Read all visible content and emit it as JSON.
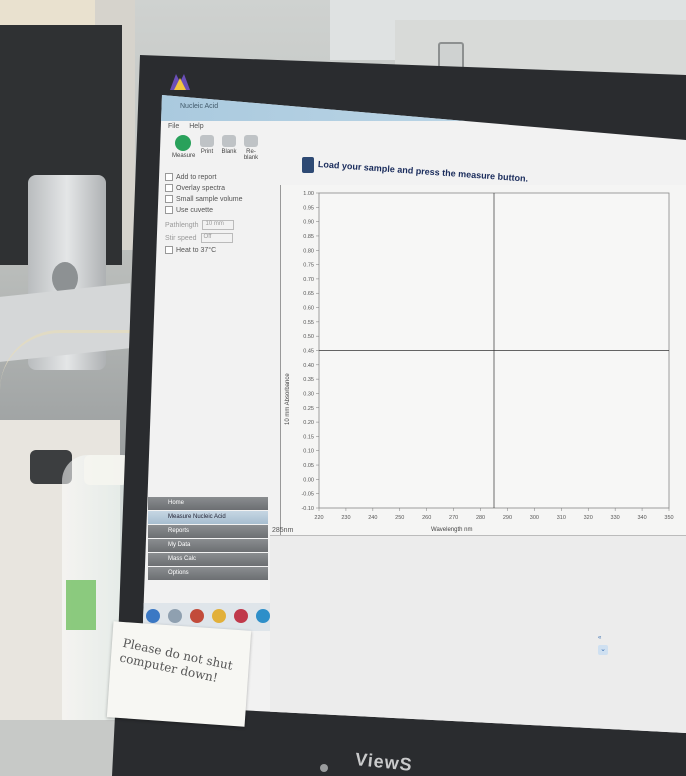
{
  "app": {
    "title": "Nucleic Acid",
    "menu": [
      "File",
      "Help"
    ],
    "toolbar": [
      "Measure",
      "Print",
      "Blank",
      "Re-blank"
    ],
    "status_message": "Load your sample and press the measure button.",
    "options": [
      {
        "label": "Add to report",
        "disabled": false
      },
      {
        "label": "Overlay spectra",
        "disabled": false
      },
      {
        "label": "Small sample volume",
        "disabled": false
      },
      {
        "label": "Use cuvette",
        "disabled": false
      },
      {
        "label": "Pathlength",
        "value": "10 mm",
        "disabled": true
      },
      {
        "label": "Stir speed",
        "value": "Off",
        "disabled": true
      },
      {
        "label": "Heat to 37°C",
        "disabled": false
      }
    ],
    "nav": [
      "Home",
      "Measure Nucleic Acid",
      "Reports",
      "My Data",
      "Mass Calc",
      "Options"
    ],
    "nav_active": 1,
    "coordinate_readout": "285nm"
  },
  "sticky_note": {
    "text": "Please do not shut computer down!"
  },
  "monitor": {
    "brand": "ViewS"
  },
  "chart_data": {
    "type": "line",
    "title": "",
    "xlabel": "Wavelength nm",
    "ylabel": "10 mm Absorbance",
    "xlim": [
      220,
      350
    ],
    "ylim": [
      -0.1,
      1.0
    ],
    "x_ticks": [
      "220",
      "230",
      "240",
      "250",
      "260",
      "270",
      "280",
      "290",
      "300",
      "310",
      "320",
      "330",
      "340",
      "350"
    ],
    "y_ticks": [
      "1.00",
      "0.95",
      "0.90",
      "0.85",
      "0.80",
      "0.75",
      "0.70",
      "0.65",
      "0.60",
      "0.55",
      "0.50",
      "0.45",
      "0.40",
      "0.35",
      "0.30",
      "0.25",
      "0.20",
      "0.15",
      "0.10",
      "0.05",
      "0.00",
      "-0.05",
      "-0.10"
    ],
    "crosshair": {
      "x": 285,
      "y": 0.45
    },
    "series": []
  }
}
